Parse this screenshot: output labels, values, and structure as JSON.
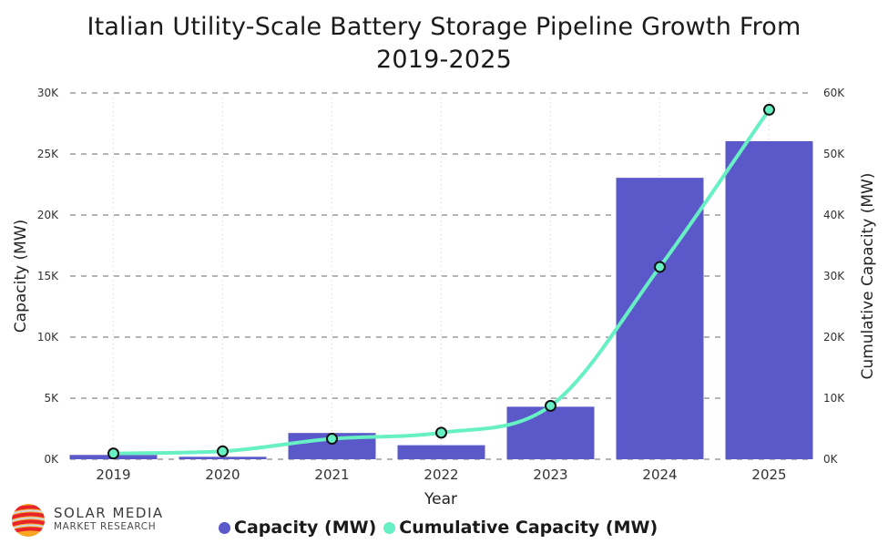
{
  "chart_data": {
    "type": "bar+line",
    "title": "Italian Utility-Scale Battery Storage Pipeline Growth From 2019-2025",
    "title_lines": [
      "Italian Utility-Scale Battery Storage Pipeline Growth From",
      "2019-2025"
    ],
    "xlabel": "Year",
    "ylabel": "Capacity (MW)",
    "y2label": "Cumulative Capacity (MW)",
    "categories": [
      "2019",
      "2020",
      "2021",
      "2022",
      "2023",
      "2024",
      "2025"
    ],
    "series": [
      {
        "name": "Capacity (MW)",
        "type": "bar",
        "axis": "left",
        "color": "#5B58C9",
        "values": [
          350,
          200,
          2150,
          1150,
          4300,
          23050,
          26050
        ]
      },
      {
        "name": "Cumulative Capacity (MW)",
        "type": "line",
        "axis": "right",
        "color": "#66F0C3",
        "values": [
          950,
          1300,
          3350,
          4350,
          8750,
          31500,
          57250
        ]
      }
    ],
    "ylim": [
      0,
      30000
    ],
    "y2lim": [
      0,
      60000
    ],
    "yticks": [
      0,
      5000,
      10000,
      15000,
      20000,
      25000,
      30000
    ],
    "yticklabels": [
      "0K",
      "5K",
      "10K",
      "15K",
      "20K",
      "25K",
      "30K"
    ],
    "y2ticks": [
      0,
      10000,
      20000,
      30000,
      40000,
      50000,
      60000
    ],
    "y2ticklabels": [
      "0K",
      "10K",
      "20K",
      "30K",
      "40K",
      "50K",
      "60K"
    ],
    "grid": true,
    "legend_position": "bottom-center"
  },
  "logo": {
    "line1": "SOLAR MEDIA",
    "line2": "MARKET RESEARCH"
  },
  "legend": [
    {
      "label": "Capacity (MW)",
      "color": "#5B58C9"
    },
    {
      "label": "Cumulative Capacity (MW)",
      "color": "#66F0C3"
    }
  ]
}
